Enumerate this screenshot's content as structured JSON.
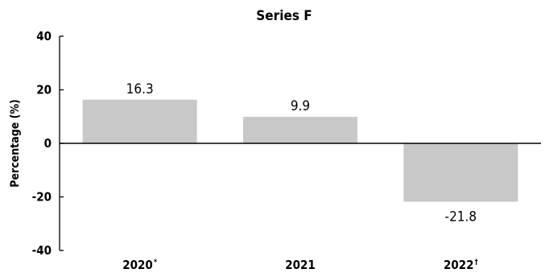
{
  "chart_data": {
    "type": "bar",
    "title": "Series F",
    "xlabel": "",
    "ylabel": "Percentage (%)",
    "categories": [
      "2020",
      "2021",
      "2022"
    ],
    "category_marks": [
      "*",
      "",
      "†"
    ],
    "values": [
      16.3,
      9.9,
      -21.8
    ],
    "value_labels": [
      "16.3",
      "9.9",
      "-21.8"
    ],
    "ylim": [
      -40,
      40
    ],
    "yticks": [
      40,
      20,
      0,
      -20,
      -40
    ],
    "ytick_labels": [
      "40",
      "20",
      "0",
      "-20",
      "-40"
    ],
    "grid": false,
    "legend": "none",
    "colors": {
      "bar": "#c8c8c8",
      "axis": "#000000",
      "text": "#000000"
    }
  }
}
